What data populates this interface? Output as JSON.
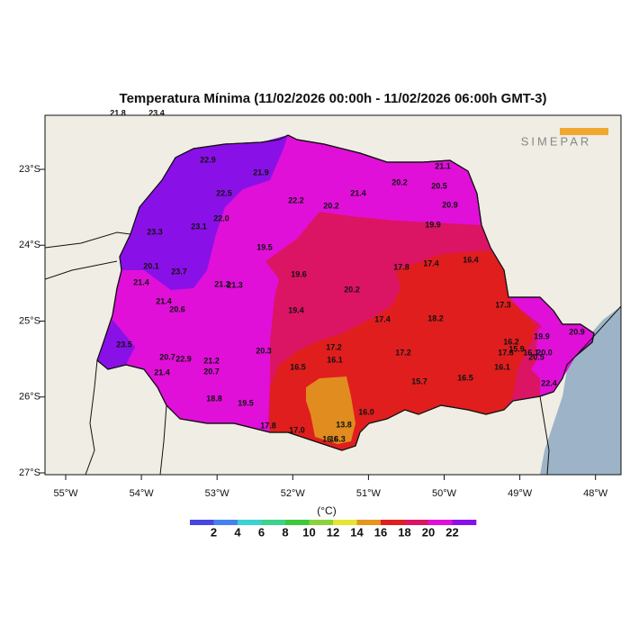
{
  "title": "Temperatura Mínima (11/02/2026 00:00h - 11/02/2026 06:00h GMT-3)",
  "logo": "SIMEPAR",
  "lon_labels": [
    "55°W",
    "54°W",
    "53°W",
    "52°W",
    "51°W",
    "50°W",
    "49°W",
    "48°W"
  ],
  "lat_labels": [
    "23°S",
    "24°S",
    "25°S",
    "26°S",
    "27°S"
  ],
  "stations": [
    "21.8",
    "23.4",
    "22.9",
    "21.9",
    "22.5",
    "22.2",
    "21.4",
    "20.2",
    "21.1",
    "20.5",
    "20.9",
    "20.2",
    "22.0",
    "23.1",
    "23.3",
    "19.9",
    "19.5",
    "20.1",
    "23.7",
    "21.4",
    "19.6",
    "17.8",
    "17.4",
    "16.4",
    "21.2",
    "21.3",
    "20.2",
    "21.4",
    "20.6",
    "19.4",
    "17.3",
    "17.4",
    "18.2",
    "23.5",
    "20.7",
    "22.9",
    "21.2",
    "20.7",
    "21.4",
    "17.2",
    "17.2",
    "16.1",
    "20.3",
    "16.5",
    "16.2",
    "17.6",
    "19.9",
    "20.9",
    "15.9",
    "16.1",
    "20.0",
    "20.5",
    "16.1",
    "15.7",
    "16.5",
    "22.4",
    "18.8",
    "19.5",
    "17.8",
    "17.0",
    "13.8",
    "16.0",
    "16.6",
    "16.3"
  ],
  "colorbar": {
    "unit": "(°C)",
    "ticks": [
      "2",
      "4",
      "6",
      "8",
      "10",
      "12",
      "14",
      "16",
      "18",
      "20",
      "22"
    ],
    "colors": [
      "#4646e0",
      "#4682ee",
      "#3cd2d2",
      "#3cd28c",
      "#3cc83c",
      "#8cd23c",
      "#e6e632",
      "#e6961e",
      "#e01e1e",
      "#dc1464",
      "#e010d8",
      "#8a10e8"
    ]
  }
}
